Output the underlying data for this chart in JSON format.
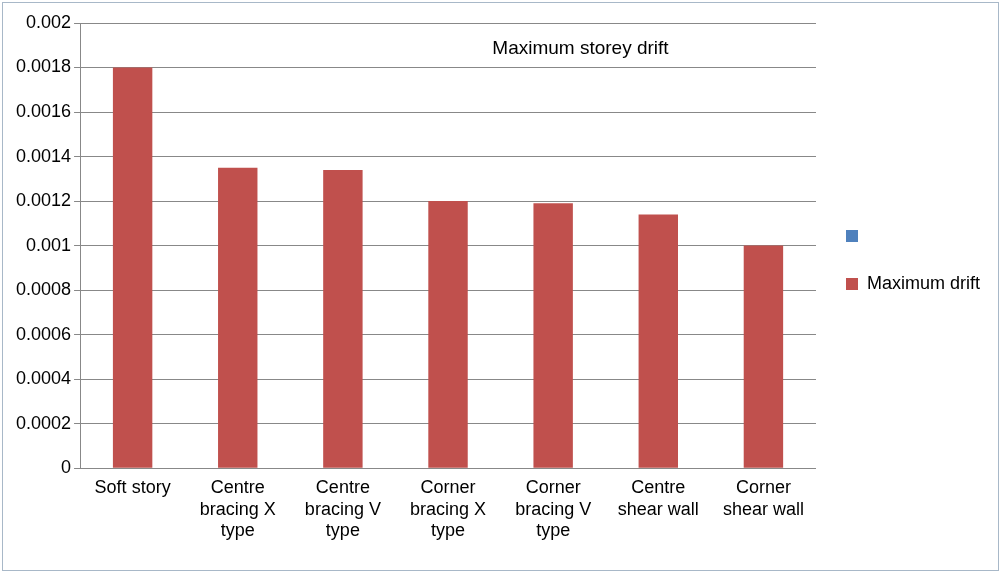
{
  "chart_data": {
    "type": "bar",
    "title": "Maximum storey drift",
    "categories": [
      "Soft story",
      "Centre bracing X type",
      "Centre bracing V type",
      "Corner bracing X type",
      "Corner bracing V type",
      "Centre shear wall",
      "Corner shear wall"
    ],
    "series": [
      {
        "name": "Maximum drift",
        "color": "#c0504d",
        "values": [
          0.0018,
          0.00135,
          0.00134,
          0.0012,
          0.00119,
          0.00114,
          0.001
        ]
      }
    ],
    "ylim": [
      0,
      0.002
    ],
    "yticks": [
      0,
      0.0002,
      0.0004,
      0.0006,
      0.0008,
      0.001,
      0.0012,
      0.0014,
      0.0016,
      0.0018,
      0.002
    ],
    "grid": "y",
    "legend": "right"
  }
}
